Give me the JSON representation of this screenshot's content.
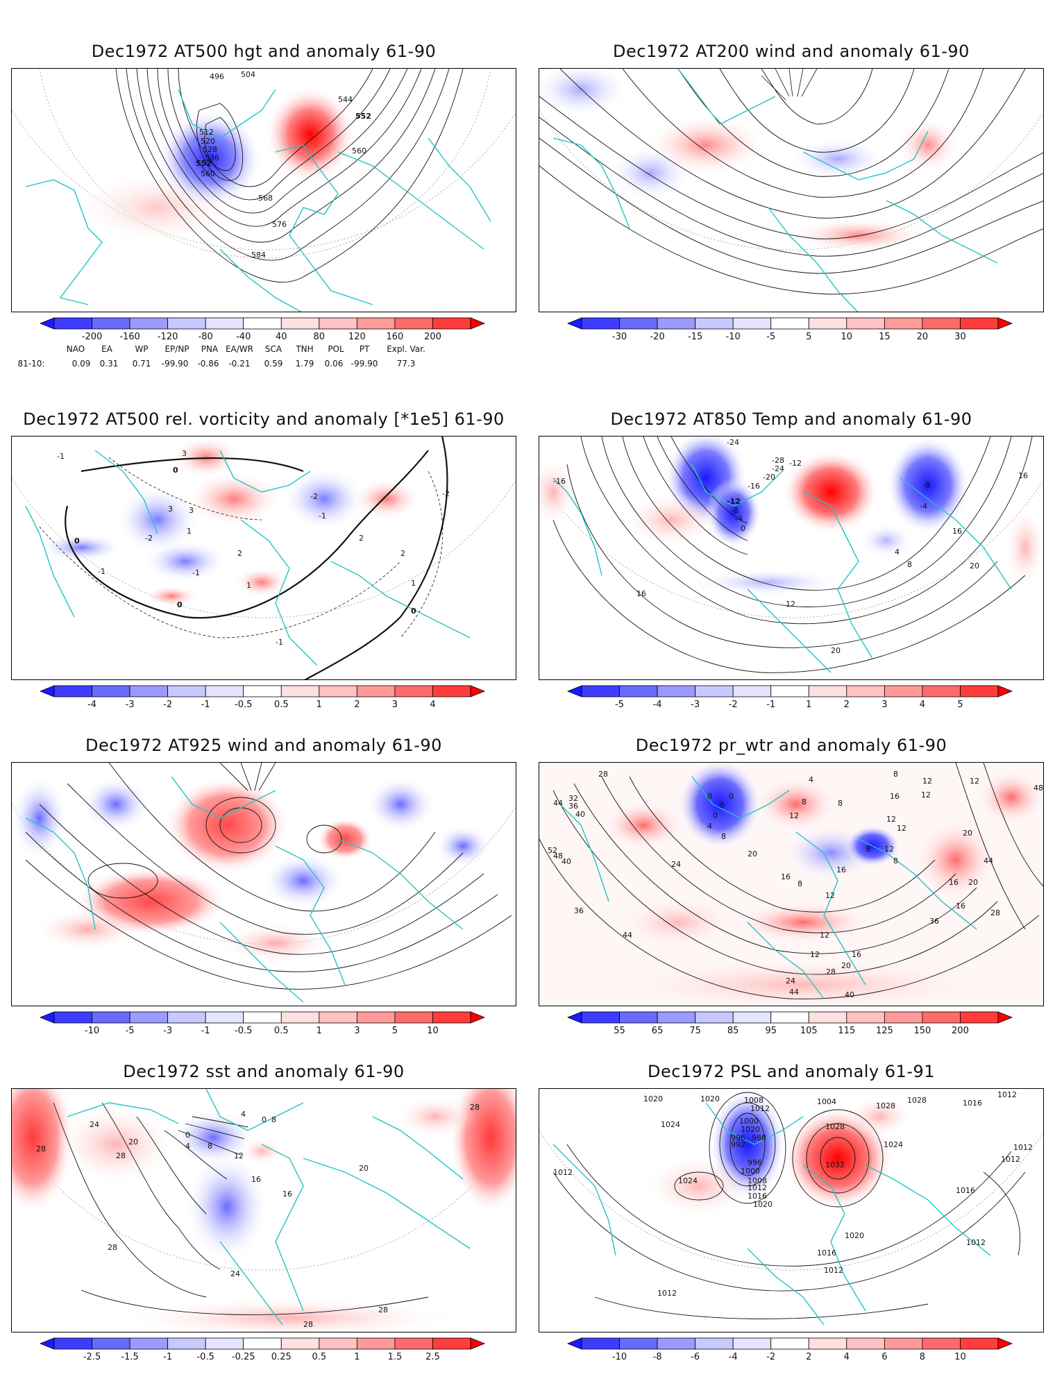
{
  "panels": [
    {
      "id": "hgt500",
      "title": "Dec1972 AT500 hgt and anomaly 61-90",
      "colorbar": {
        "ticks": [
          "-200",
          "-160",
          "-120",
          "-80",
          "-40",
          "40",
          "80",
          "120",
          "160",
          "200"
        ],
        "colors": [
          "#1a1aff",
          "#3d3dff",
          "#6a6aff",
          "#9a9aff",
          "#c8c8ff",
          "#e4e4ff",
          "#ffffff",
          "#ffe0e0",
          "#ffc2c2",
          "#ff9a9a",
          "#ff6a6a",
          "#ff3d3d",
          "#ff0000"
        ]
      },
      "contour_labels": [
        "496",
        "504",
        "512",
        "520",
        "528",
        "536",
        "544",
        "552",
        "560",
        "568",
        "576",
        "584"
      ],
      "anomaly_centers": [
        {
          "sign": "negative",
          "region": "Hudson Bay / Greenland",
          "peak": -200
        },
        {
          "sign": "positive",
          "region": "Scandinavia",
          "peak": 200
        }
      ],
      "teleconnections": {
        "row_label": "81-10:",
        "indices": [
          {
            "name": "NAO",
            "value": "0.09"
          },
          {
            "name": "EA",
            "value": "0.31"
          },
          {
            "name": "WP",
            "value": "0.71"
          },
          {
            "name": "EP/NP",
            "value": "-99.90"
          },
          {
            "name": "PNA",
            "value": "-0.86"
          },
          {
            "name": "EA/WR",
            "value": "-0.21"
          },
          {
            "name": "SCA",
            "value": "0.59"
          },
          {
            "name": "TNH",
            "value": "1.79"
          },
          {
            "name": "POL",
            "value": "0.06"
          },
          {
            "name": "PT",
            "value": "-99.90"
          },
          {
            "name": "Expl. Var.",
            "value": "77.3"
          }
        ]
      }
    },
    {
      "id": "wind200",
      "title": "Dec1972 AT200 wind and anomaly 61-90",
      "colorbar": {
        "ticks": [
          "-30",
          "-20",
          "-15",
          "-10",
          "-5",
          "5",
          "10",
          "15",
          "20",
          "30"
        ],
        "colors": [
          "#1a1aff",
          "#3d3dff",
          "#6a6aff",
          "#9a9aff",
          "#c8c8ff",
          "#e4e4ff",
          "#ffffff",
          "#ffe0e0",
          "#ffc2c2",
          "#ff9a9a",
          "#ff6a6a",
          "#ff3d3d",
          "#ff0000"
        ]
      }
    },
    {
      "id": "vort500",
      "title": "Dec1972 AT500 rel. vorticity and anomaly [*1e5] 61-90",
      "colorbar": {
        "ticks": [
          "-4",
          "-3",
          "-2",
          "-1",
          "-0.5",
          "0.5",
          "1",
          "2",
          "3",
          "4"
        ],
        "colors": [
          "#1a1aff",
          "#3d3dff",
          "#6a6aff",
          "#9a9aff",
          "#c8c8ff",
          "#e4e4ff",
          "#ffffff",
          "#ffe0e0",
          "#ffc2c2",
          "#ff9a9a",
          "#ff6a6a",
          "#ff3d3d",
          "#ff0000"
        ]
      },
      "contour_labels": [
        "-2",
        "-1",
        "0",
        "1",
        "2",
        "3"
      ]
    },
    {
      "id": "temp850",
      "title": "Dec1972 AT850 Temp and anomaly 61-90",
      "colorbar": {
        "ticks": [
          "-5",
          "-4",
          "-3",
          "-2",
          "-1",
          "1",
          "2",
          "3",
          "4",
          "5"
        ],
        "colors": [
          "#1a1aff",
          "#3d3dff",
          "#6a6aff",
          "#9a9aff",
          "#c8c8ff",
          "#e4e4ff",
          "#ffffff",
          "#ffe0e0",
          "#ffc2c2",
          "#ff9a9a",
          "#ff6a6a",
          "#ff3d3d",
          "#ff0000"
        ]
      },
      "contour_labels": [
        "-24",
        "-16",
        "-12",
        "-8",
        "-4",
        "0",
        "4",
        "8",
        "12",
        "16",
        "20"
      ]
    },
    {
      "id": "wind925",
      "title": "Dec1972 AT925 wind and anomaly 61-90",
      "colorbar": {
        "ticks": [
          "-10",
          "-5",
          "-3",
          "-1",
          "-0.5",
          "0.5",
          "1",
          "3",
          "5",
          "10"
        ],
        "colors": [
          "#1a1aff",
          "#3d3dff",
          "#6a6aff",
          "#9a9aff",
          "#c8c8ff",
          "#e4e4ff",
          "#ffffff",
          "#ffe0e0",
          "#ffc2c2",
          "#ff9a9a",
          "#ff6a6a",
          "#ff3d3d",
          "#ff0000"
        ]
      }
    },
    {
      "id": "prwtr",
      "title": "Dec1972 pr_wtr and anomaly 61-90",
      "colorbar": {
        "ticks": [
          "55",
          "65",
          "75",
          "85",
          "95",
          "105",
          "115",
          "125",
          "150",
          "200"
        ],
        "colors": [
          "#1a1aff",
          "#3d3dff",
          "#6a6aff",
          "#9a9aff",
          "#c8c8ff",
          "#e4e4ff",
          "#ffffff",
          "#ffe0e0",
          "#ffc2c2",
          "#ff9a9a",
          "#ff6a6a",
          "#ff3d3d",
          "#ff0000"
        ]
      },
      "contour_labels": [
        "4",
        "8",
        "12",
        "16",
        "20",
        "24",
        "28",
        "32",
        "36",
        "40",
        "44",
        "48"
      ]
    },
    {
      "id": "sst",
      "title": "Dec1972 sst and anomaly 61-90",
      "colorbar": {
        "ticks": [
          "-2.5",
          "-1.5",
          "-1",
          "-0.5",
          "-0.25",
          "0.25",
          "0.5",
          "1",
          "1.5",
          "2.5"
        ],
        "colors": [
          "#1a1aff",
          "#3d3dff",
          "#6a6aff",
          "#9a9aff",
          "#c8c8ff",
          "#e4e4ff",
          "#ffffff",
          "#ffe0e0",
          "#ffc2c2",
          "#ff9a9a",
          "#ff6a6a",
          "#ff3d3d",
          "#ff0000"
        ]
      },
      "contour_labels": [
        "0",
        "4",
        "8",
        "12",
        "16",
        "20",
        "24",
        "28"
      ]
    },
    {
      "id": "psl",
      "title": "Dec1972 PSL and anomaly 61-91",
      "colorbar": {
        "ticks": [
          "-10",
          "-8",
          "-6",
          "-4",
          "-2",
          "2",
          "4",
          "6",
          "8",
          "10"
        ],
        "colors": [
          "#1a1aff",
          "#3d3dff",
          "#6a6aff",
          "#9a9aff",
          "#c8c8ff",
          "#e4e4ff",
          "#ffffff",
          "#ffe0e0",
          "#ffc2c2",
          "#ff9a9a",
          "#ff6a6a",
          "#ff3d3d",
          "#ff0000"
        ]
      },
      "contour_labels": [
        "992",
        "1000",
        "1008",
        "1012",
        "1016",
        "1020",
        "1024",
        "1028",
        "1032"
      ]
    }
  ]
}
